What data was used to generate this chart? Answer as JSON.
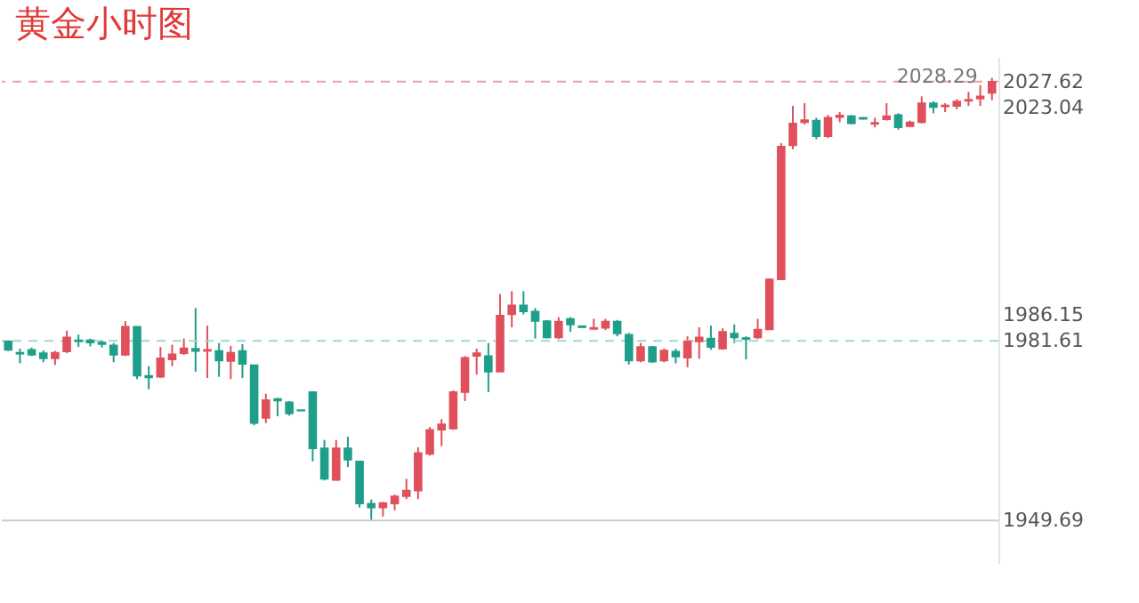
{
  "chart_data": {
    "type": "candlestick",
    "title": "黄金小时图",
    "categories": [
      null,
      null,
      null,
      null,
      null,
      null,
      null,
      null,
      null,
      null,
      null,
      null,
      null,
      null,
      null,
      null,
      null,
      null,
      null,
      null,
      null,
      null,
      null,
      null,
      null,
      null,
      null,
      null,
      null,
      null,
      null,
      null,
      null,
      null,
      null,
      null,
      null,
      null,
      null,
      null,
      null,
      null,
      null,
      null,
      null,
      null,
      null,
      null,
      null,
      null,
      null,
      null,
      null,
      null,
      null,
      null,
      null,
      null,
      null,
      null,
      null,
      null,
      null,
      null,
      null,
      null,
      null,
      null,
      null,
      null,
      null,
      null,
      null,
      null,
      null,
      null,
      null,
      null,
      null,
      null,
      null,
      null,
      null,
      null,
      null
    ],
    "ohlc": [
      [
        1981.5,
        1981.7,
        1979.8,
        1980.0
      ],
      [
        1979.5,
        1980.2,
        1977.6,
        1979.3
      ],
      [
        1980.0,
        1980.4,
        1978.9,
        1979.1
      ],
      [
        1979.4,
        1979.9,
        1977.8,
        1978.5
      ],
      [
        1978.5,
        1979.8,
        1977.3,
        1979.5
      ],
      [
        1979.7,
        1983.4,
        1979.4,
        1982.2
      ],
      [
        1981.7,
        1982.7,
        1980.5,
        1981.5
      ],
      [
        1981.7,
        1982.0,
        1980.6,
        1981.3
      ],
      [
        1981.3,
        1981.7,
        1980.4,
        1981.0
      ],
      [
        1980.8,
        1981.2,
        1977.8,
        1979.1
      ],
      [
        1979.1,
        1985.1,
        1978.9,
        1984.1
      ],
      [
        1984.1,
        1984.1,
        1974.8,
        1975.4
      ],
      [
        1975.4,
        1977.1,
        1973.0,
        1975.1
      ],
      [
        1975.2,
        1980.5,
        1975.0,
        1978.5
      ],
      [
        1978.3,
        1980.9,
        1977.1,
        1979.2
      ],
      [
        1979.4,
        1982.0,
        1979.1,
        1980.3
      ],
      [
        1980.2,
        1987.4,
        1976.1,
        1979.8
      ],
      [
        1979.8,
        1984.3,
        1975.0,
        1980.0
      ],
      [
        1979.8,
        1981.2,
        1975.2,
        1978.1
      ],
      [
        1978.0,
        1980.7,
        1974.8,
        1979.5
      ],
      [
        1979.8,
        1981.0,
        1975.0,
        1977.5
      ],
      [
        1977.3,
        1977.3,
        1966.6,
        1967.0
      ],
      [
        1967.9,
        1972.2,
        1967.0,
        1971.1
      ],
      [
        1971.3,
        1971.5,
        1968.2,
        1971.0
      ],
      [
        1970.7,
        1970.9,
        1968.3,
        1968.7
      ],
      [
        1969.3,
        1969.3,
        1969.2,
        1969.2
      ],
      [
        1972.5,
        1972.5,
        1960.2,
        1962.5
      ],
      [
        1962.5,
        1964.0,
        1956.8,
        1957.1
      ],
      [
        1956.9,
        1964.0,
        1956.8,
        1962.5
      ],
      [
        1962.5,
        1964.6,
        1959.2,
        1960.5
      ],
      [
        1960.2,
        1960.2,
        1952.0,
        1952.7
      ],
      [
        1952.7,
        1953.4,
        1949.7,
        1952.0
      ],
      [
        1952.0,
        1953.0,
        1950.4,
        1952.8
      ],
      [
        1952.7,
        1954.3,
        1951.5,
        1954.0
      ],
      [
        1954.0,
        1957.1,
        1953.5,
        1955.0
      ],
      [
        1955.0,
        1962.7,
        1953.5,
        1961.7
      ],
      [
        1961.5,
        1966.3,
        1961.2,
        1965.8
      ],
      [
        1965.8,
        1967.7,
        1962.9,
        1966.8
      ],
      [
        1966.0,
        1972.8,
        1965.8,
        1972.5
      ],
      [
        1972.5,
        1978.9,
        1970.9,
        1978.6
      ],
      [
        1978.9,
        1980.2,
        1975.6,
        1979.4
      ],
      [
        1978.9,
        1981.2,
        1972.5,
        1976.1
      ],
      [
        1976.1,
        1989.9,
        1976.1,
        1986.1
      ],
      [
        1986.3,
        1990.4,
        1984.0,
        1987.9
      ],
      [
        1987.9,
        1990.4,
        1986.3,
        1986.8
      ],
      [
        1986.8,
        1987.4,
        1982.0,
        1985.1
      ],
      [
        1985.1,
        1985.3,
        1982.0,
        1982.2
      ],
      [
        1982.2,
        1985.8,
        1981.9,
        1985.0
      ],
      [
        1985.5,
        1985.8,
        1983.2,
        1984.5
      ],
      [
        1984.2,
        1984.3,
        1983.9,
        1984.0
      ],
      [
        1983.7,
        1985.5,
        1983.6,
        1983.9
      ],
      [
        1983.9,
        1985.5,
        1983.5,
        1985.0
      ],
      [
        1985.0,
        1985.3,
        1982.4,
        1982.9
      ],
      [
        1982.7,
        1983.0,
        1977.4,
        1978.1
      ],
      [
        1978.1,
        1981.2,
        1977.8,
        1980.5
      ],
      [
        1980.5,
        1980.7,
        1977.7,
        1977.9
      ],
      [
        1978.1,
        1980.2,
        1977.8,
        1979.9
      ],
      [
        1979.7,
        1980.2,
        1977.6,
        1978.8
      ],
      [
        1978.6,
        1982.4,
        1976.9,
        1981.5
      ],
      [
        1981.5,
        1984.0,
        1978.4,
        1982.2
      ],
      [
        1982.0,
        1984.3,
        1980.0,
        1980.5
      ],
      [
        1980.2,
        1983.8,
        1980.0,
        1983.2
      ],
      [
        1982.9,
        1984.5,
        1981.2,
        1982.2
      ],
      [
        1982.1,
        1982.4,
        1978.3,
        1981.9
      ],
      [
        1982.2,
        1985.5,
        1981.9,
        1983.6
      ],
      [
        1983.6,
        1992.7,
        1983.6,
        1992.5
      ],
      [
        1992.5,
        2016.7,
        1992.4,
        2016.1
      ],
      [
        2016.3,
        2023.3,
        2015.6,
        2020.2
      ],
      [
        2020.4,
        2023.8,
        2020.0,
        2020.8
      ],
      [
        2020.7,
        2021.2,
        2017.4,
        2017.9
      ],
      [
        2017.9,
        2021.7,
        2017.6,
        2021.2
      ],
      [
        2021.3,
        2022.2,
        2020.4,
        2021.6
      ],
      [
        2021.5,
        2021.7,
        2020.0,
        2020.2
      ],
      [
        2021.2,
        2021.3,
        2020.9,
        2021.0
      ],
      [
        2020.1,
        2021.2,
        2019.5,
        2020.3
      ],
      [
        2020.9,
        2023.8,
        2020.7,
        2021.5
      ],
      [
        2021.7,
        2022.0,
        2019.1,
        2019.5
      ],
      [
        2019.7,
        2020.7,
        2019.5,
        2020.4
      ],
      [
        2020.4,
        2025.0,
        2020.2,
        2023.8
      ],
      [
        2023.8,
        2024.1,
        2022.0,
        2023.1
      ],
      [
        2023.2,
        2023.8,
        2022.2,
        2023.4
      ],
      [
        2023.3,
        2024.5,
        2022.7,
        2024.1
      ],
      [
        2024.2,
        2025.8,
        2023.3,
        2024.4
      ],
      [
        2024.6,
        2027.0,
        2023.3,
        2025.0
      ],
      [
        2025.6,
        2028.29,
        2024.3,
        2027.62
      ]
    ],
    "colors": [
      "#1f9e89",
      "#1f9e89",
      "#1f9e89",
      "#1f9e89",
      "#e0505c",
      "#e0505c",
      "#1f9e89",
      "#1f9e89",
      "#1f9e89",
      "#1f9e89",
      "#e0505c",
      "#1f9e89",
      "#1f9e89",
      "#e0505c",
      "#e0505c",
      "#e0505c",
      "#1f9e89",
      "#e0505c",
      "#1f9e89",
      "#e0505c",
      "#1f9e89",
      "#1f9e89",
      "#e0505c",
      "#1f9e89",
      "#1f9e89",
      "#1f9e89",
      "#1f9e89",
      "#1f9e89",
      "#e0505c",
      "#1f9e89",
      "#1f9e89",
      "#1f9e89",
      "#e0505c",
      "#e0505c",
      "#e0505c",
      "#e0505c",
      "#e0505c",
      "#e0505c",
      "#e0505c",
      "#e0505c",
      "#e0505c",
      "#1f9e89",
      "#e0505c",
      "#e0505c",
      "#1f9e89",
      "#1f9e89",
      "#1f9e89",
      "#e0505c",
      "#1f9e89",
      "#1f9e89",
      "#e0505c",
      "#e0505c",
      "#1f9e89",
      "#1f9e89",
      "#e0505c",
      "#1f9e89",
      "#e0505c",
      "#1f9e89",
      "#e0505c",
      "#e0505c",
      "#1f9e89",
      "#e0505c",
      "#1f9e89",
      "#1f9e89",
      "#e0505c",
      "#e0505c",
      "#e0505c",
      "#e0505c",
      "#e0505c",
      "#1f9e89",
      "#e0505c",
      "#e0505c",
      "#1f9e89",
      "#1f9e89",
      "#e0505c",
      "#e0505c",
      "#1f9e89",
      "#e0505c",
      "#e0505c",
      "#1f9e89",
      "#e0505c",
      "#e0505c",
      "#e0505c",
      "#e0505c",
      "#e0505c"
    ],
    "ylim": [
      1942,
      2032
    ],
    "yticks": [
      1949.69,
      1981.61,
      1986.15,
      2023.04,
      2027.62
    ],
    "tick_labels": "y",
    "ref_lines": [
      {
        "axis": "y",
        "value": 2027.62,
        "color": "#e8a0a0",
        "line_style": "dashed"
      },
      {
        "axis": "y",
        "value": 1981.61,
        "color": "#9fd9cf",
        "line_style": "dashed"
      },
      {
        "axis": "y",
        "value": 1949.69,
        "color": "#cccccc",
        "line_style": "solid"
      }
    ],
    "annotations": [
      {
        "text": "2028.29",
        "y": 2028.29
      }
    ]
  }
}
